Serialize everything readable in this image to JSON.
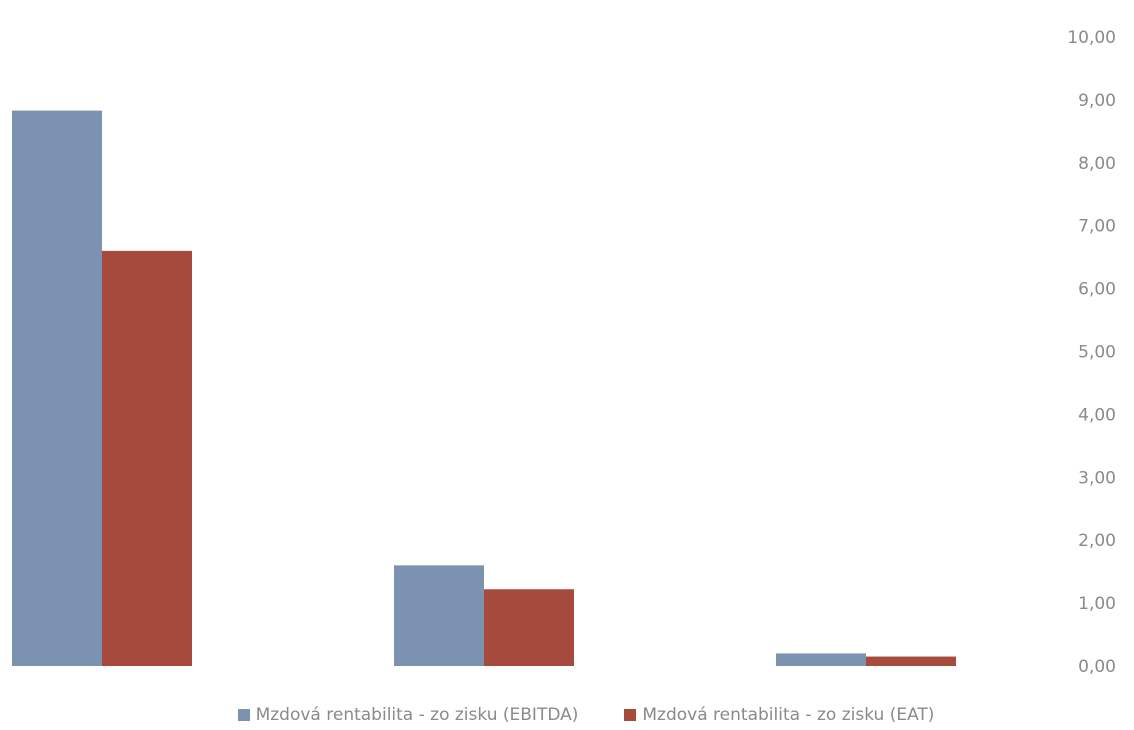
{
  "chart_data": {
    "type": "bar",
    "categories": [
      "",
      "",
      ""
    ],
    "series": [
      {
        "name": "Mzdová rentabilita - zo zisku (EBITDA)",
        "values": [
          8.83,
          1.6,
          0.2
        ],
        "color": "#7b92b0"
      },
      {
        "name": "Mzdová rentabilita - zo zisku (EAT)",
        "values": [
          6.6,
          1.22,
          0.15
        ],
        "color": "#a64a3d"
      }
    ],
    "ylim": [
      0,
      10
    ],
    "y_ticks": [
      "0,00",
      "1,00",
      "2,00",
      "3,00",
      "4,00",
      "5,00",
      "6,00",
      "7,00",
      "8,00",
      "9,00",
      "10,00"
    ],
    "y_axis_position": "right",
    "grid": false,
    "legend_position": "bottom",
    "title": "",
    "xlabel": "",
    "ylabel": ""
  }
}
